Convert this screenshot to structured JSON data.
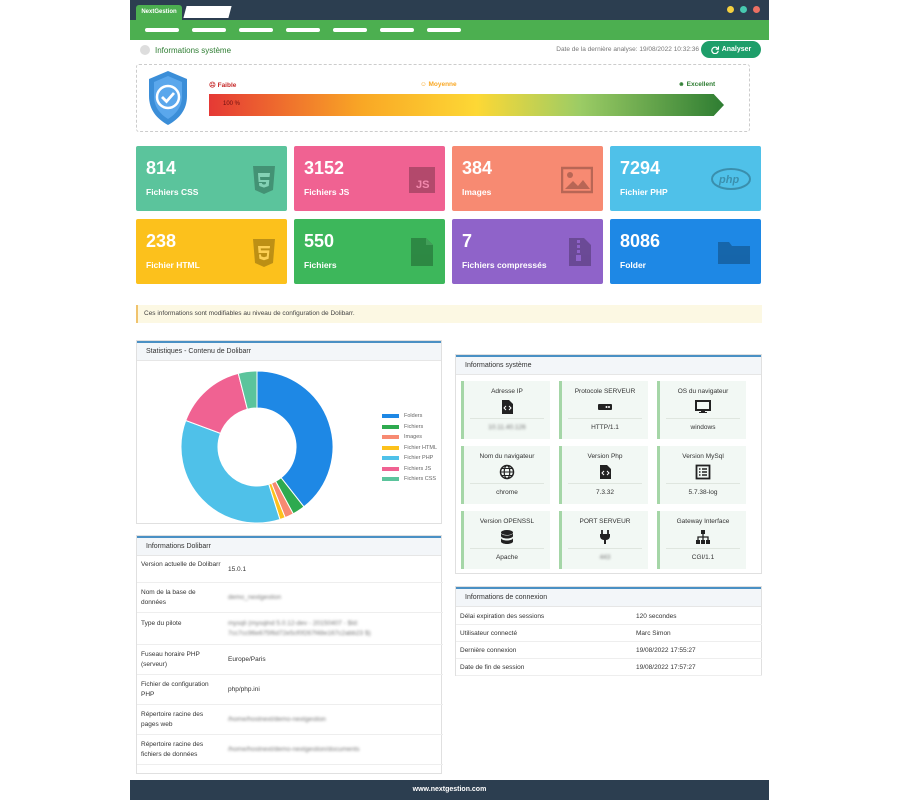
{
  "window": {
    "tab_label": "NextGestion",
    "dot_colors": [
      "#f4d03f",
      "#48c9b0",
      "#ec7063"
    ]
  },
  "header": {
    "title": "Informations système",
    "last_analysis": "Date de la dernière analyse: 19/08/2022 10:32:36",
    "analyse_label": "Analyser"
  },
  "score": {
    "low": "Faible",
    "medium": "Moyenne",
    "high": "Excellent",
    "percent": "100 %",
    "fill": 1.0
  },
  "stats": [
    {
      "value": "814",
      "label": "Fichiers CSS",
      "color": "#5bc49c",
      "icon": "css3-icon"
    },
    {
      "value": "3152",
      "label": "Fichiers JS",
      "color": "#f06292",
      "icon": "js-icon"
    },
    {
      "value": "384",
      "label": "Images",
      "color": "#f78a72",
      "icon": "image-icon"
    },
    {
      "value": "7294",
      "label": "Fichier PHP",
      "color": "#4fc1e9",
      "icon": "php-icon"
    },
    {
      "value": "238",
      "label": "Fichier HTML",
      "color": "#fcc11c",
      "icon": "html5-icon"
    },
    {
      "value": "550",
      "label": "Fichiers",
      "color": "#3db75b",
      "icon": "file-icon"
    },
    {
      "value": "7",
      "label": "Fichiers compressés",
      "color": "#8f63c9",
      "icon": "zip-icon"
    },
    {
      "value": "8086",
      "label": "Folder",
      "color": "#1e88e5",
      "icon": "folder-icon"
    }
  ],
  "notice": "Ces informations sont modifiables au niveau de configuration de Dolibarr.",
  "statistics_panel": {
    "title": "Statistiques - Contenu de Dolibarr"
  },
  "chart_data": {
    "type": "pie",
    "categories": [
      "Folders",
      "Fichiers",
      "Images",
      "Fichier HTML",
      "Fichier PHP",
      "Fichiers JS",
      "Fichiers CSS"
    ],
    "values": [
      8086,
      550,
      384,
      238,
      7294,
      3152,
      814
    ],
    "colors": [
      "#1e88e5",
      "#2eaa4f",
      "#f78a72",
      "#fcc11c",
      "#4fc1e9",
      "#f06292",
      "#5bc49c"
    ],
    "legend_position": "right"
  },
  "system_panel": {
    "title": "Informations système",
    "cards": [
      {
        "title": "Adresse IP",
        "value": "10.11.40.126",
        "icon": "code-file-icon",
        "blur": true
      },
      {
        "title": "Protocole SERVEUR",
        "value": "HTTP/1.1",
        "icon": "server-icon",
        "blur": false
      },
      {
        "title": "OS du navigateur",
        "value": "windows",
        "icon": "monitor-icon",
        "blur": false
      },
      {
        "title": "Nom du navigateur",
        "value": "chrome",
        "icon": "globe-icon",
        "blur": false
      },
      {
        "title": "Version Php",
        "value": "7.3.32",
        "icon": "code-file-icon",
        "blur": false
      },
      {
        "title": "Version MySql",
        "value": "5.7.38-log",
        "icon": "list-icon",
        "blur": false
      },
      {
        "title": "Version OPENSSL",
        "value": "Apache",
        "icon": "database-icon",
        "blur": false
      },
      {
        "title": "PORT SERVEUR",
        "value": "443",
        "icon": "plug-icon",
        "blur": true
      },
      {
        "title": "Gateway Interface",
        "value": "CGI/1.1",
        "icon": "network-icon",
        "blur": false
      }
    ]
  },
  "dolibarr_panel": {
    "title": "Informations Dolibarr",
    "rows": [
      {
        "label": "Version actuelle de Dolibarr",
        "value": "15.0.1",
        "blur": false
      },
      {
        "label": "Nom de la base de données",
        "value": "demo_nextgestion",
        "blur": true
      },
      {
        "label": "Type du pilote",
        "value": "mysqli (mysqlnd 5.0.12-dev - 20150407 - $Id: 7cc7cc96e675f6d72e5cf0f267f48e167c2abb23 $)",
        "blur": true
      },
      {
        "label": "Fuseau horaire PHP (serveur)",
        "value": "Europe/Paris",
        "blur": false
      },
      {
        "label": "Fichier de configuration PHP",
        "value": "php/php.ini",
        "blur": false
      },
      {
        "label": "Répertoire racine des pages web",
        "value": "/home/hostnext/demo-nextgestion",
        "blur": true
      },
      {
        "label": "Répertoire racine des fichiers de données",
        "value": "/home/hostnext/demo-nextgestion/documents",
        "blur": true
      }
    ]
  },
  "connection_panel": {
    "title": "Informations de connexion",
    "rows": [
      {
        "label": "Délai expiration des sessions",
        "value": "120 secondes"
      },
      {
        "label": "Utilisateur connecté",
        "value": "Marc Simon"
      },
      {
        "label": "Dernière connexion",
        "value": "19/08/2022 17:55:27"
      },
      {
        "label": "Date de fin de session",
        "value": "19/08/2022 17:57:27"
      }
    ]
  },
  "footer": "www.nextgestion.com"
}
